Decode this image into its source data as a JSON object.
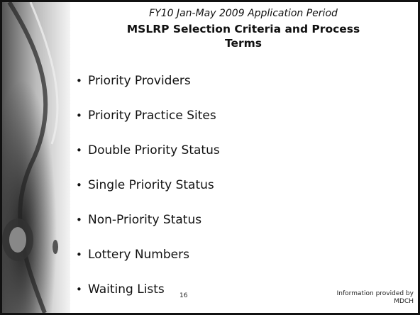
{
  "header": {
    "subtitle": "FY10 Jan-May 2009 Application Period",
    "title": "MSLRP Selection Criteria and Process Terms"
  },
  "bullets": [
    "Priority Providers",
    "Priority Practice Sites",
    "Double Priority Status",
    "Single Priority Status",
    "Non-Priority Status",
    "Lottery Numbers",
    "Waiting Lists"
  ],
  "footer": {
    "page_number": "16",
    "credit": "Information provided by MDCH"
  }
}
